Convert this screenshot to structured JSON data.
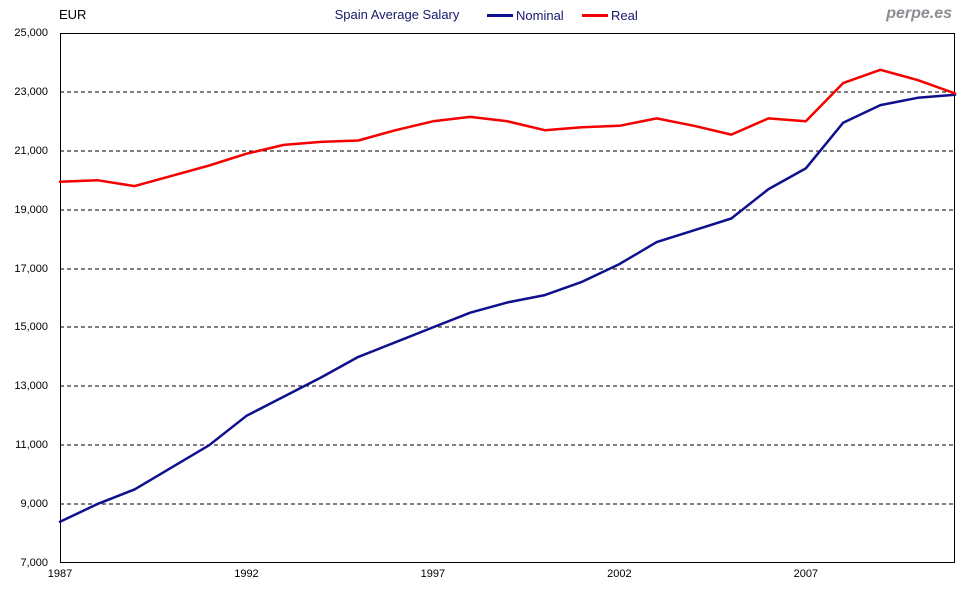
{
  "header": {
    "unit_label": "EUR",
    "title": "Spain Average Salary",
    "watermark": "perpe.es"
  },
  "chart_data": {
    "type": "line",
    "title": "Spain Average Salary",
    "ylabel": "EUR",
    "xlabel": "",
    "x": [
      1987,
      1988,
      1989,
      1990,
      1991,
      1992,
      1993,
      1994,
      1995,
      1996,
      1997,
      1998,
      1999,
      2000,
      2001,
      2002,
      2003,
      2004,
      2005,
      2006,
      2007,
      2008,
      2009,
      2010,
      2011
    ],
    "series": [
      {
        "name": "Nominal",
        "color": "#10108e",
        "values": [
          8400,
          9000,
          9500,
          10250,
          11000,
          12000,
          12650,
          13300,
          14000,
          14500,
          15000,
          15500,
          15850,
          16100,
          16550,
          17150,
          17900,
          18300,
          18700,
          19700,
          20400,
          21950,
          22550,
          22800,
          22900
        ]
      },
      {
        "name": "Real",
        "color": "#f50000",
        "values": [
          19950,
          20000,
          19800,
          20150,
          20500,
          20900,
          21200,
          21300,
          21350,
          21700,
          22000,
          22150,
          22000,
          21700,
          21800,
          21850,
          22100,
          21850,
          21550,
          22100,
          22000,
          23300,
          23750,
          23400,
          22950
        ]
      }
    ],
    "ylim": [
      7000,
      25000
    ],
    "xlim": [
      1987,
      2011
    ],
    "yticks": [
      {
        "value": 7000,
        "label": "7,000"
      },
      {
        "value": 9000,
        "label": "9,000"
      },
      {
        "value": 11000,
        "label": "11,000"
      },
      {
        "value": 13000,
        "label": "13,000"
      },
      {
        "value": 15000,
        "label": "15,000"
      },
      {
        "value": 17000,
        "label": "17,000"
      },
      {
        "value": 19000,
        "label": "19,000"
      },
      {
        "value": 21000,
        "label": "21,000"
      },
      {
        "value": 23000,
        "label": "23,000"
      },
      {
        "value": 25000,
        "label": "25,000"
      }
    ],
    "xticks": [
      {
        "value": 1987,
        "label": "1987"
      },
      {
        "value": 1992,
        "label": "1992"
      },
      {
        "value": 1997,
        "label": "1997"
      },
      {
        "value": 2002,
        "label": "2002"
      },
      {
        "value": 2007,
        "label": "2007"
      }
    ],
    "gridlines": [
      9000,
      11000,
      13000,
      15000,
      17000,
      19000,
      21000,
      23000
    ],
    "grid_style": "horizontal-dashed",
    "grid_color": "#000000",
    "axis_color": "#000000",
    "legend_position": "top-center"
  }
}
